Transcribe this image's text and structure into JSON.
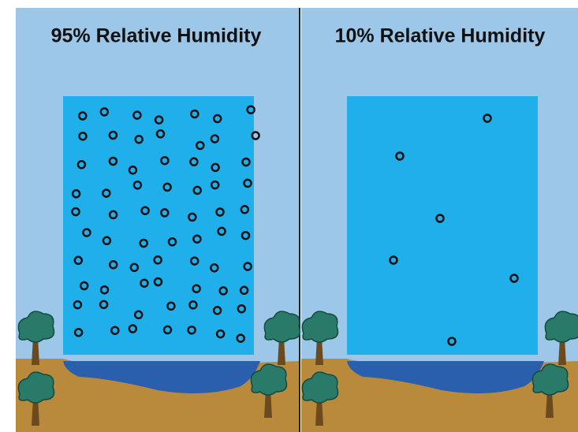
{
  "panels": [
    {
      "title": "95% Relative Humidity"
    },
    {
      "title": "10% Relative Humidity"
    }
  ]
}
